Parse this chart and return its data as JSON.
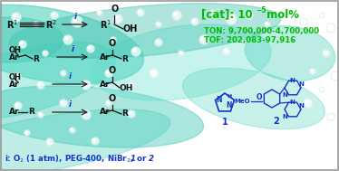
{
  "fig_w": 3.74,
  "fig_h": 1.89,
  "dpi": 100,
  "background_color": "#ffffff",
  "border_color": "#888888",
  "green_color": "#00bb00",
  "blue_color": "#1133cc",
  "black_color": "#111111",
  "teal_colors": [
    "#40c8b0",
    "#50d8c0",
    "#60e0c8",
    "#70d4bc",
    "#3abcaa"
  ],
  "bubble_color": "#ffffff",
  "cat_line": "[cat]: 10⁻⁵ mol%",
  "ton_line": "TON: 9,700,000-4,700,000",
  "tof_line": "TOF: 202,083-97,916",
  "condition_line": "i: O₂ (1 atm), PEG-400, NiBr₂, 1 or 2"
}
